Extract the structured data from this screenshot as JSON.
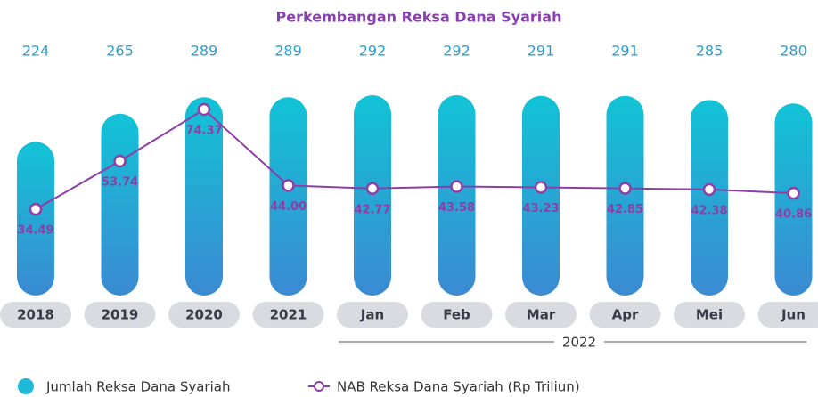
{
  "chart_data": {
    "type": "bar",
    "title": "Perkembangan Reksa Dana Syariah",
    "categories": [
      "2018",
      "2019",
      "2020",
      "2021",
      "Jan",
      "Feb",
      "Mar",
      "Apr",
      "Mei",
      "Jun"
    ],
    "x_group_label": "2022",
    "series": [
      {
        "name": "Jumlah Reksa Dana Syariah",
        "type": "bar",
        "color": "#1fb8d8",
        "values": [
          224,
          265,
          289,
          289,
          292,
          292,
          291,
          291,
          285,
          280
        ]
      },
      {
        "name": "NAB Reksa Dana Syariah (Rp Triliun)",
        "type": "line",
        "color": "#8e3fa6",
        "values": [
          34.49,
          53.74,
          74.37,
          44.0,
          42.77,
          43.58,
          43.23,
          42.85,
          42.38,
          40.86
        ],
        "value_labels": [
          "34.49",
          "53.74",
          "74.37",
          "44.00",
          "42.77",
          "43.58",
          "43.23",
          "42.85",
          "42.38",
          "40.86"
        ]
      }
    ]
  }
}
